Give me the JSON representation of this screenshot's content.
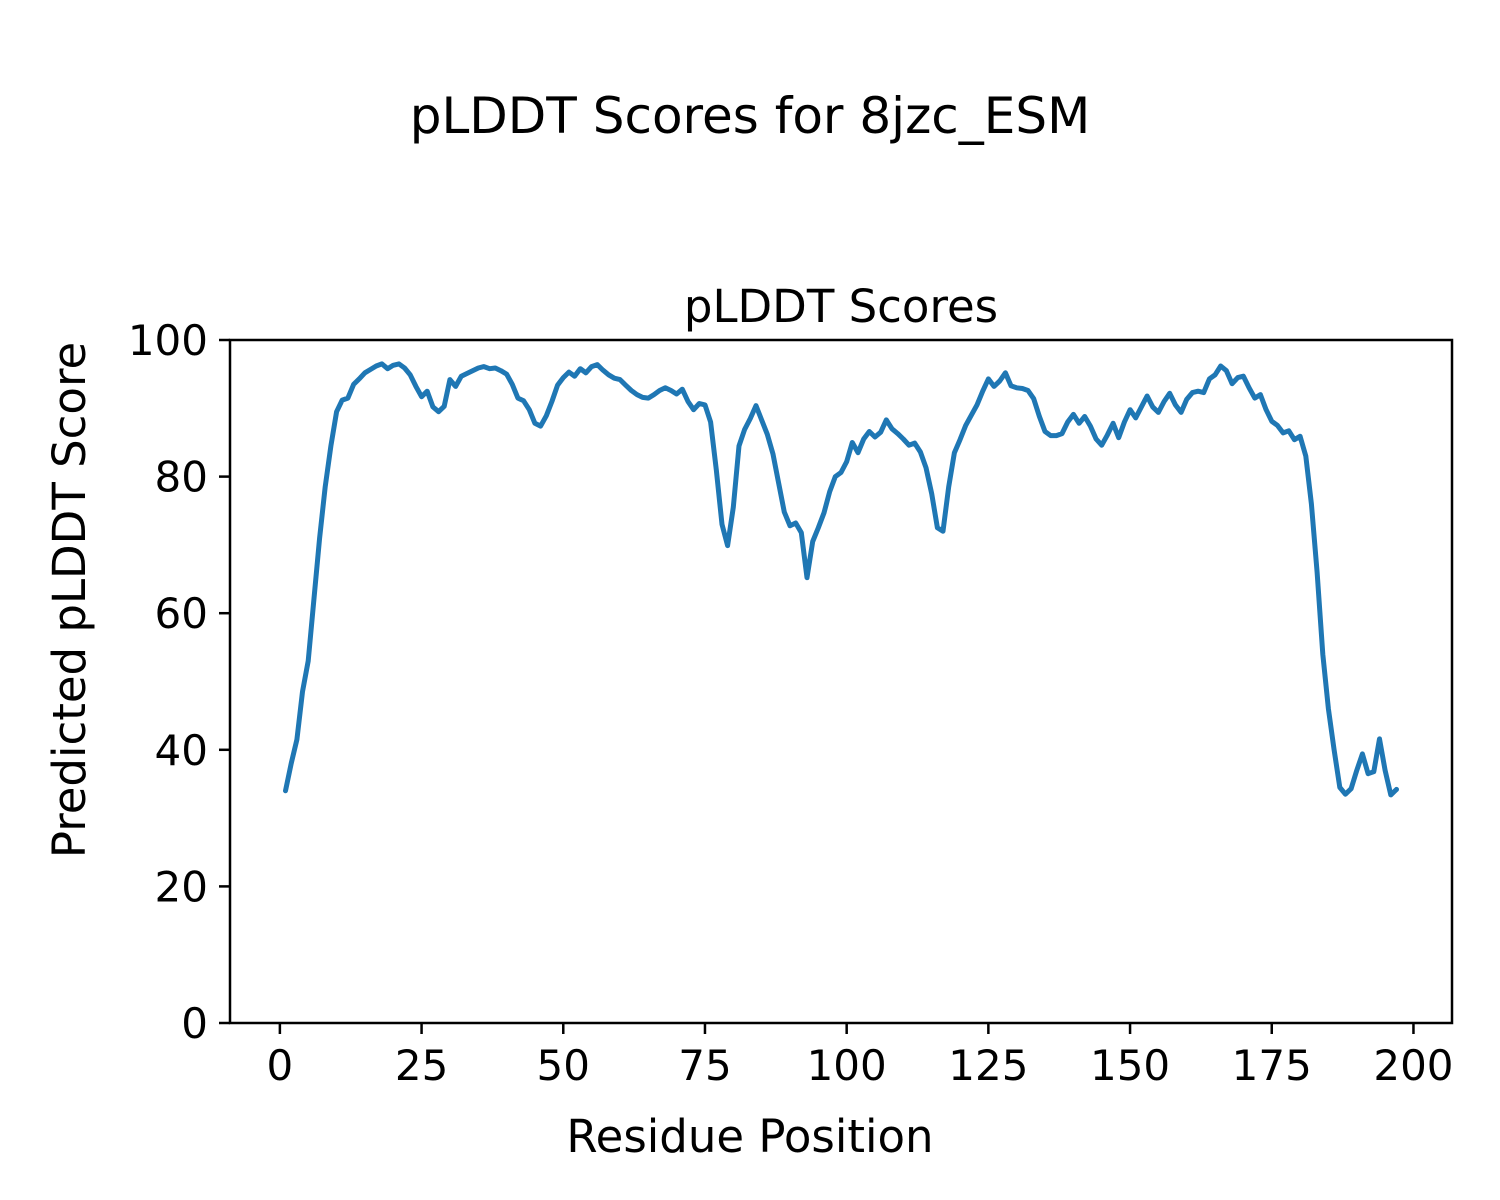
{
  "figure": {
    "suptitle": "pLDDT Scores for 8jzc_ESM",
    "background": "#ffffff",
    "axes_color": "#000000"
  },
  "chart_data": {
    "type": "line",
    "title": "pLDDT Scores",
    "xlabel": "Residue Position",
    "ylabel": "Predicted pLDDT Score",
    "xlim": [
      -8.8,
      206.8
    ],
    "ylim": [
      0,
      100
    ],
    "xticks": [
      0,
      25,
      50,
      75,
      100,
      125,
      150,
      175,
      200
    ],
    "yticks": [
      0,
      20,
      40,
      60,
      80,
      100
    ],
    "grid": false,
    "legend": "none",
    "series": [
      {
        "name": "pLDDT",
        "color": "#1f77b4",
        "x_start": 1,
        "values": [
          34.0,
          38.0,
          41.5,
          48.5,
          53.0,
          62.0,
          71.0,
          78.5,
          84.5,
          89.5,
          91.2,
          91.5,
          93.5,
          94.3,
          95.2,
          95.7,
          96.2,
          96.5,
          95.8,
          96.3,
          96.5,
          95.9,
          94.9,
          93.2,
          91.7,
          92.5,
          90.2,
          89.5,
          90.3,
          94.2,
          93.2,
          94.7,
          95.1,
          95.5,
          95.9,
          96.1,
          95.8,
          95.9,
          95.5,
          95.0,
          93.5,
          91.5,
          91.1,
          89.8,
          87.8,
          87.4,
          88.9,
          91.0,
          93.4,
          94.5,
          95.3,
          94.7,
          95.8,
          95.2,
          96.1,
          96.4,
          95.6,
          94.9,
          94.4,
          94.2,
          93.4,
          92.6,
          92.0,
          91.6,
          91.5,
          92.0,
          92.6,
          93.0,
          92.6,
          92.1,
          92.8,
          91.0,
          89.8,
          90.7,
          90.5,
          88.0,
          81.0,
          73.0,
          69.9,
          75.5,
          84.5,
          86.9,
          88.5,
          90.4,
          88.3,
          86.2,
          83.3,
          79.0,
          74.8,
          72.8,
          73.2,
          71.8,
          65.2,
          70.5,
          72.5,
          74.7,
          77.8,
          80.0,
          80.6,
          82.2,
          85.0,
          83.5,
          85.5,
          86.6,
          85.8,
          86.5,
          88.3,
          87.0,
          86.3,
          85.5,
          84.6,
          84.9,
          83.6,
          81.3,
          77.5,
          72.5,
          72.0,
          78.5,
          83.5,
          85.4,
          87.5,
          89.0,
          90.5,
          92.5,
          94.3,
          93.2,
          94.0,
          95.2,
          93.3,
          93.0,
          92.9,
          92.6,
          91.4,
          88.8,
          86.6,
          86.0,
          86.0,
          86.3,
          88.0,
          89.1,
          87.8,
          88.8,
          87.4,
          85.5,
          84.6,
          86.1,
          87.8,
          85.7,
          88.0,
          89.8,
          88.6,
          90.2,
          91.8,
          90.2,
          89.4,
          91.0,
          92.2,
          90.5,
          89.4,
          91.3,
          92.3,
          92.5,
          92.3,
          94.3,
          94.9,
          96.2,
          95.5,
          93.6,
          94.5,
          94.7,
          93.0,
          91.5,
          92.0,
          89.8,
          88.1,
          87.5,
          86.4,
          86.7,
          85.4,
          85.9,
          83.0,
          76.0,
          66.0,
          54.0,
          46.0,
          40.0,
          34.5,
          33.5,
          34.3,
          37.0,
          39.4,
          36.5,
          36.8,
          41.6,
          37.0,
          33.4,
          34.2
        ]
      }
    ]
  }
}
